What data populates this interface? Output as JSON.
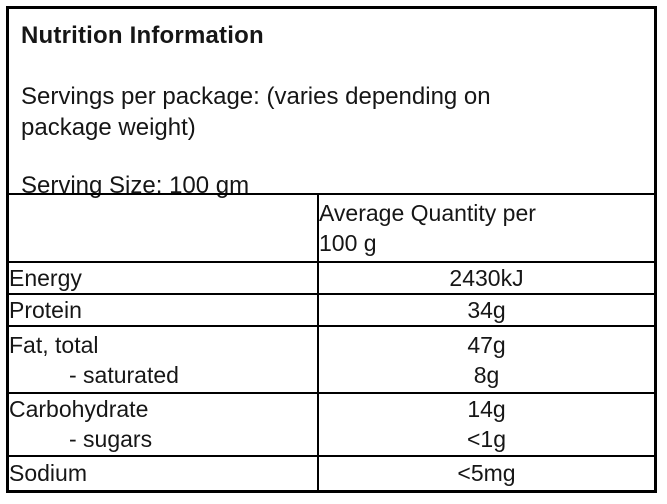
{
  "panel": {
    "title": "Nutrition Information",
    "servings": {
      "line1": "Servings per package: (varies depending on",
      "line2": "package weight)"
    },
    "serving_size": "Serving Size: 100 gm"
  },
  "table": {
    "value_column_header": {
      "line1": "Average Quantity per",
      "line2": "100 g",
      "full": "Average Quantity per 100 g"
    },
    "rows": [
      {
        "label": "Energy",
        "value": "2430kJ"
      },
      {
        "label": "Protein",
        "value": "34g"
      },
      {
        "label": "Fat, total",
        "value": "47g",
        "sub_label": "- saturated",
        "sub_value": "8g"
      },
      {
        "label": "Carbohydrate",
        "value": "14g",
        "sub_label": "- sugars",
        "sub_value": "<1g"
      },
      {
        "label": "Sodium",
        "value": "<5mg"
      }
    ]
  },
  "colors": {
    "border": "#000000",
    "text": "#161616",
    "background": "#ffffff"
  }
}
